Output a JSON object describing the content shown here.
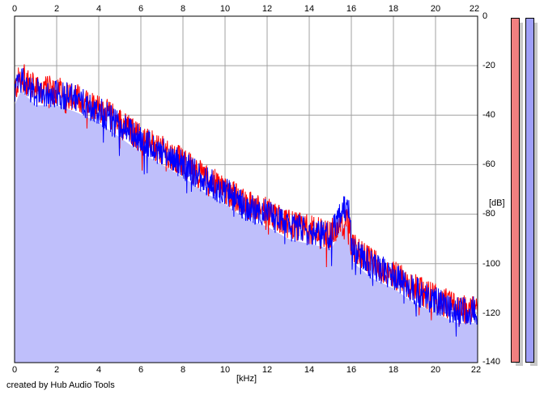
{
  "app": {
    "credit_text": "created by Hub Audio Tools"
  },
  "axes": {
    "x_unit": "[kHz]",
    "y_unit": "[dB]",
    "x_ticks": [
      "0",
      "2",
      "4",
      "6",
      "8",
      "10",
      "12",
      "14",
      "16",
      "18",
      "20",
      "22"
    ],
    "y_ticks": [
      "0",
      "-20",
      "-40",
      "-60",
      "-80",
      "-100",
      "-120",
      "-140"
    ]
  },
  "colors": {
    "left_channel": "#ff0000",
    "right_channel": "#0000ff",
    "fill": "#bfbffb",
    "grid": "#a0a0a0",
    "meter_left": "#f08080",
    "meter_right": "#a0a0f8"
  },
  "chart_data": {
    "type": "line",
    "title": "",
    "xlabel": "[kHz]",
    "ylabel": "[dB]",
    "xlim": [
      0,
      22
    ],
    "ylim": [
      -140,
      0
    ],
    "grid": true,
    "series": [
      {
        "x": [
          0,
          0.3,
          1,
          2,
          3,
          4,
          5,
          6,
          7,
          8,
          9,
          10,
          11,
          12,
          13,
          14,
          15,
          15.7,
          15.9,
          16,
          17,
          18,
          19,
          20,
          21,
          22
        ],
        "values": [
          -30,
          -24,
          -30,
          -30,
          -33,
          -37,
          -43,
          -49,
          -54,
          -59,
          -65,
          -70,
          -76,
          -79,
          -84,
          -86,
          -88,
          -84,
          -83,
          -93,
          -100,
          -104,
          -110,
          -114,
          -118,
          -118
        ]
      },
      {
        "x": [
          0,
          0.3,
          1,
          2,
          3,
          4,
          5,
          6,
          7,
          8,
          9,
          10,
          11,
          12,
          13,
          14,
          15,
          15.7,
          15.9,
          16,
          17,
          18,
          19,
          20,
          21,
          22
        ],
        "values": [
          -31,
          -25,
          -31,
          -31,
          -34,
          -38,
          -44,
          -50,
          -55,
          -60,
          -66,
          -71,
          -77,
          -80,
          -85,
          -87,
          -89,
          -77,
          -80,
          -94,
          -101,
          -105,
          -111,
          -115,
          -119,
          -119
        ]
      }
    ]
  }
}
